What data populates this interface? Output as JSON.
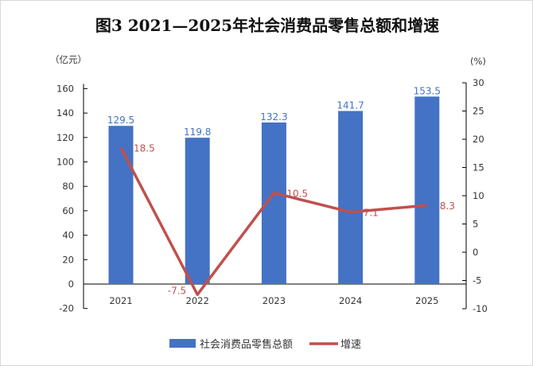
{
  "chart_data": {
    "type": "bar+line",
    "title": "图3   2021—2025年社会消费品零售总额和增速",
    "categories": [
      "2021",
      "2022",
      "2023",
      "2024",
      "2025"
    ],
    "series": [
      {
        "name": "社会消费品零售总额",
        "type": "bar",
        "axis": "left",
        "values": [
          129.5,
          119.8,
          132.3,
          141.7,
          153.5
        ],
        "color": "#4472c4",
        "labels": [
          "129.5",
          "119.8",
          "132.3",
          "141.7",
          "153.5"
        ]
      },
      {
        "name": "增速",
        "type": "line",
        "axis": "right",
        "values": [
          18.5,
          -7.5,
          10.5,
          7.1,
          8.3
        ],
        "color": "#c0504d",
        "labels": [
          "18.5",
          "-7.5",
          "10.5",
          "7.1",
          "8.3"
        ]
      }
    ],
    "left_axis": {
      "unit": "（亿元）",
      "ylim": [
        -20,
        160
      ],
      "ticks": [
        "160",
        "140",
        "120",
        "100",
        "80",
        "60",
        "40",
        "20",
        "0",
        "-20"
      ]
    },
    "right_axis": {
      "unit": "(%)",
      "ylim": [
        -10,
        30
      ],
      "ticks": [
        "30",
        "25",
        "20",
        "15",
        "10",
        "5",
        "0",
        "-5",
        "-10"
      ]
    },
    "legend": "bottom",
    "grid": false
  }
}
